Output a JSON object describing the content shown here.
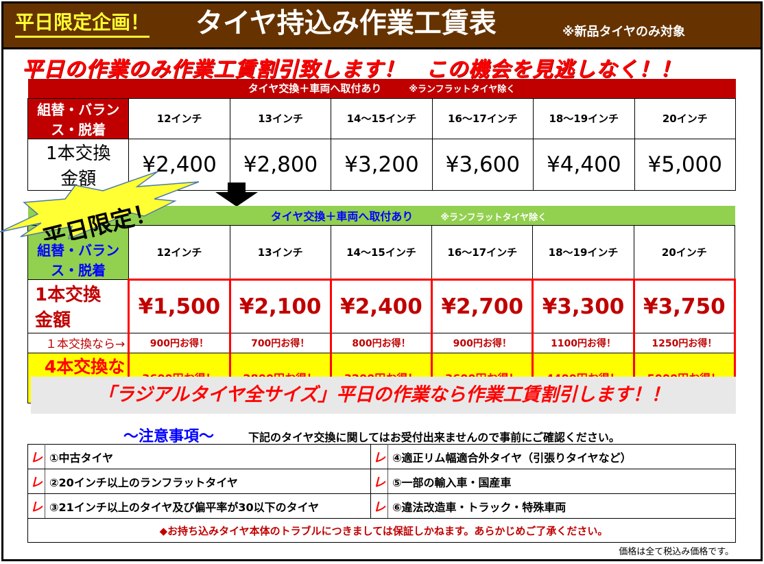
{
  "header": {
    "promo": "平日限定企画！",
    "title": "タイヤ持込み作業工賃表",
    "note": "※新品タイヤのみ対象"
  },
  "subtitle": "平日の作業のみ作業工賃割引致します！　この機会を見逃しなく！！",
  "sizes": [
    "12インチ",
    "13インチ",
    "14～15インチ",
    "16～17インチ",
    "18～19インチ",
    "20インチ"
  ],
  "regular": {
    "header": "タイヤ交換＋車両へ取付あり",
    "hint": "※ランフラットタイヤ除く",
    "label": "組替・バランス・脱着",
    "row_label": "1本交換　金額",
    "prices": [
      "¥2,400",
      "¥2,800",
      "¥3,200",
      "¥3,600",
      "¥4,400",
      "¥5,000"
    ]
  },
  "burst": "平日限定！",
  "weekday": {
    "header": "タイヤ交換＋車両へ取付あり",
    "hint": "※ランフラットタイヤ除く",
    "label": "組替・バランス・脱着",
    "row_label": "1本交換　金額",
    "prices": [
      "¥1,500",
      "¥2,100",
      "¥2,400",
      "¥2,700",
      "¥3,300",
      "¥3,750"
    ],
    "one_label": "１本交換なら→",
    "one_savings": [
      "900円お得！",
      "700円お得！",
      "800円お得！",
      "900円お得！",
      "1100円お得！",
      "1250円お得！"
    ],
    "four_label": "4本交換なら→",
    "four_savings": [
      "3600円お得！",
      "2800円お得！",
      "3200円お得！",
      "3600円お得！",
      "4400円お得！",
      "5000円お得！"
    ]
  },
  "banner": "「ラジアルタイヤ全サイズ」平日の作業なら作業工賃割引します！！",
  "notes": {
    "title": "～注意事項～",
    "desc": "下記のタイヤ交換に関してはお受付出来ませんので事前にご確認ください。",
    "check": "レ",
    "items": [
      "①中古タイヤ",
      "④適正リム幅適合外タイヤ（引張りタイヤなど）",
      "②20インチ以上のランフラットタイヤ",
      "⑤一部の輸入車・国産車",
      "③21インチ以上のタイヤ及び偏平率が30以下のタイヤ",
      "⑥違法改造車・トラック・特殊車両"
    ],
    "warning": "◆お持ち込みタイヤ本体のトラブルにつきましては保証しかねます。あらかじめご了承ください。"
  },
  "footer": "価格は全て税込み価格です。",
  "colors": {
    "header_bg": "#663300",
    "regular_bg": "#c00000",
    "weekday_bg": "#92d050",
    "highlight": "#ffff00",
    "accent": "#ff0000"
  }
}
